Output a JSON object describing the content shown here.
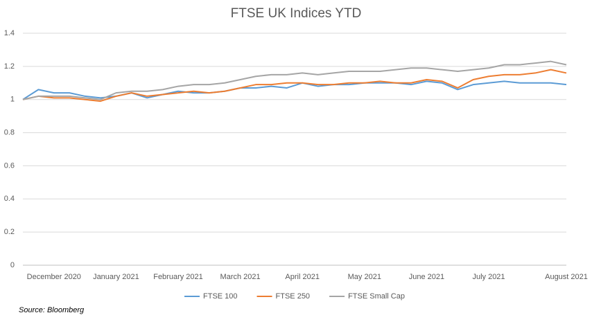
{
  "chart_data": {
    "type": "line",
    "title": "FTSE UK Indices YTD",
    "categories": [
      null,
      null,
      "December 2020",
      null,
      null,
      null,
      "January 2021",
      null,
      null,
      null,
      "February 2021",
      null,
      null,
      null,
      "March 2021",
      null,
      null,
      null,
      "April 2021",
      null,
      null,
      null,
      "May 2021",
      null,
      null,
      null,
      "June 2021",
      null,
      null,
      null,
      "July 2021",
      null,
      null,
      null,
      null,
      "August 2021"
    ],
    "series": [
      {
        "name": "FTSE 100",
        "color": "#5b9bd5",
        "values": [
          1.0,
          1.06,
          1.04,
          1.04,
          1.02,
          1.01,
          1.02,
          1.04,
          1.01,
          1.03,
          1.05,
          1.04,
          1.04,
          1.05,
          1.07,
          1.07,
          1.08,
          1.07,
          1.1,
          1.08,
          1.09,
          1.09,
          1.1,
          1.1,
          1.1,
          1.09,
          1.11,
          1.1,
          1.06,
          1.09,
          1.1,
          1.11,
          1.1,
          1.1,
          1.1,
          1.09
        ]
      },
      {
        "name": "FTSE 250",
        "color": "#ed7d31",
        "values": [
          1.0,
          1.02,
          1.01,
          1.01,
          1.0,
          0.99,
          1.02,
          1.04,
          1.02,
          1.03,
          1.04,
          1.05,
          1.04,
          1.05,
          1.07,
          1.09,
          1.09,
          1.1,
          1.1,
          1.09,
          1.09,
          1.1,
          1.1,
          1.11,
          1.1,
          1.1,
          1.12,
          1.11,
          1.07,
          1.12,
          1.14,
          1.15,
          1.15,
          1.16,
          1.18,
          1.16
        ]
      },
      {
        "name": "FTSE Small Cap",
        "color": "#a5a5a5",
        "values": [
          1.0,
          1.02,
          1.02,
          1.02,
          1.01,
          1.0,
          1.04,
          1.05,
          1.05,
          1.06,
          1.08,
          1.09,
          1.09,
          1.1,
          1.12,
          1.14,
          1.15,
          1.15,
          1.16,
          1.15,
          1.16,
          1.17,
          1.17,
          1.17,
          1.18,
          1.19,
          1.19,
          1.18,
          1.17,
          1.18,
          1.19,
          1.21,
          1.21,
          1.22,
          1.23,
          1.21
        ]
      }
    ],
    "ylim": [
      0,
      1.4
    ],
    "yticks": [
      0,
      0.2,
      0.4,
      0.6,
      0.8,
      1,
      1.2,
      1.4
    ],
    "grid": true,
    "legend": "bottom",
    "source": "Source: Bloomberg"
  }
}
